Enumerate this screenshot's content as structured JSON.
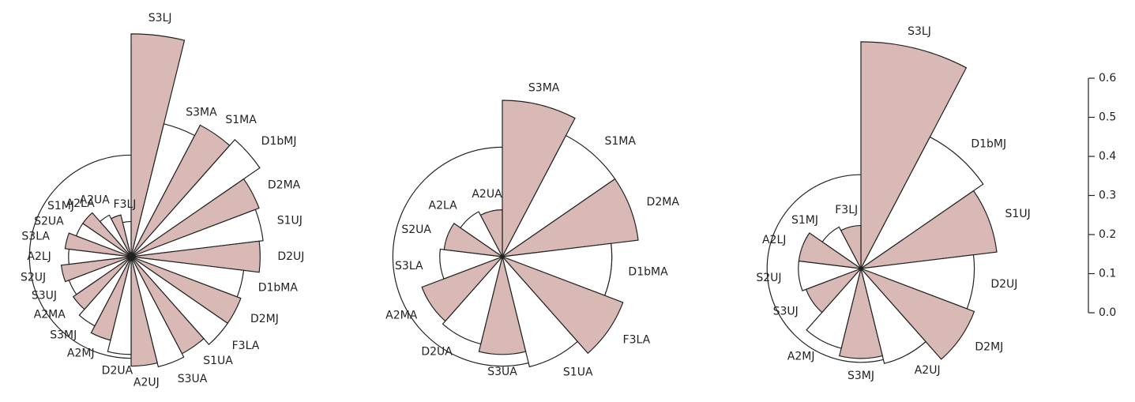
{
  "chart_data": [
    {
      "type": "polar",
      "reference": 0.26,
      "colors": [
        "#d9b9b5",
        "#ffffff"
      ],
      "categories": [
        "S3LJ",
        "S3MA",
        "S1MA",
        "D1bMJ",
        "D2MA",
        "S1UJ",
        "D2UJ",
        "D1bMA",
        "D2MJ",
        "F3LA",
        "S1UA",
        "S3UA",
        "A2UJ",
        "D2UA",
        "A2MJ",
        "S3MJ",
        "A2MA",
        "S3UJ",
        "S2UJ",
        "A2LJ",
        "S3LA",
        "S2UA",
        "S1MJ",
        "A2LA",
        "A2UA",
        "F3LJ"
      ],
      "values": [
        0.57,
        0.35,
        0.38,
        0.4,
        0.35,
        0.34,
        0.33,
        0.29,
        0.3,
        0.3,
        0.28,
        0.29,
        0.28,
        0.25,
        0.22,
        0.2,
        0.18,
        0.17,
        0.18,
        0.16,
        0.17,
        0.15,
        0.15,
        0.12,
        0.11,
        0.09
      ]
    },
    {
      "type": "polar",
      "reference": 0.28,
      "colors": [
        "#d9b9b5",
        "#ffffff"
      ],
      "categories": [
        "S3MA",
        "S1MA",
        "D2MA",
        "D1bMA",
        "F3LA",
        "S1UA",
        "S3UA",
        "D2UA",
        "A2MA",
        "S3LA",
        "S2UA",
        "A2LA",
        "A2UA"
      ],
      "values": [
        0.4,
        0.35,
        0.35,
        0.28,
        0.33,
        0.29,
        0.25,
        0.23,
        0.22,
        0.16,
        0.15,
        0.13,
        0.12
      ]
    },
    {
      "type": "polar",
      "reference": 0.24,
      "colors": [
        "#d9b9b5",
        "#ffffff"
      ],
      "categories": [
        "S3LJ",
        "D1bMJ",
        "S1UJ",
        "D2UJ",
        "D2MJ",
        "A2UJ",
        "S3MJ",
        "A2MJ",
        "S3UJ",
        "S2UJ",
        "A2LJ",
        "S1MJ",
        "F3LJ"
      ],
      "values": [
        0.58,
        0.38,
        0.35,
        0.29,
        0.31,
        0.25,
        0.23,
        0.21,
        0.15,
        0.16,
        0.16,
        0.12,
        0.11
      ]
    }
  ],
  "scale": {
    "rlim": [
      0,
      0.6
    ],
    "rticks": [
      {
        "value": 0,
        "label": "0.0"
      },
      0.1,
      0.2,
      0.3,
      0.4,
      0.5,
      0.6
    ]
  }
}
